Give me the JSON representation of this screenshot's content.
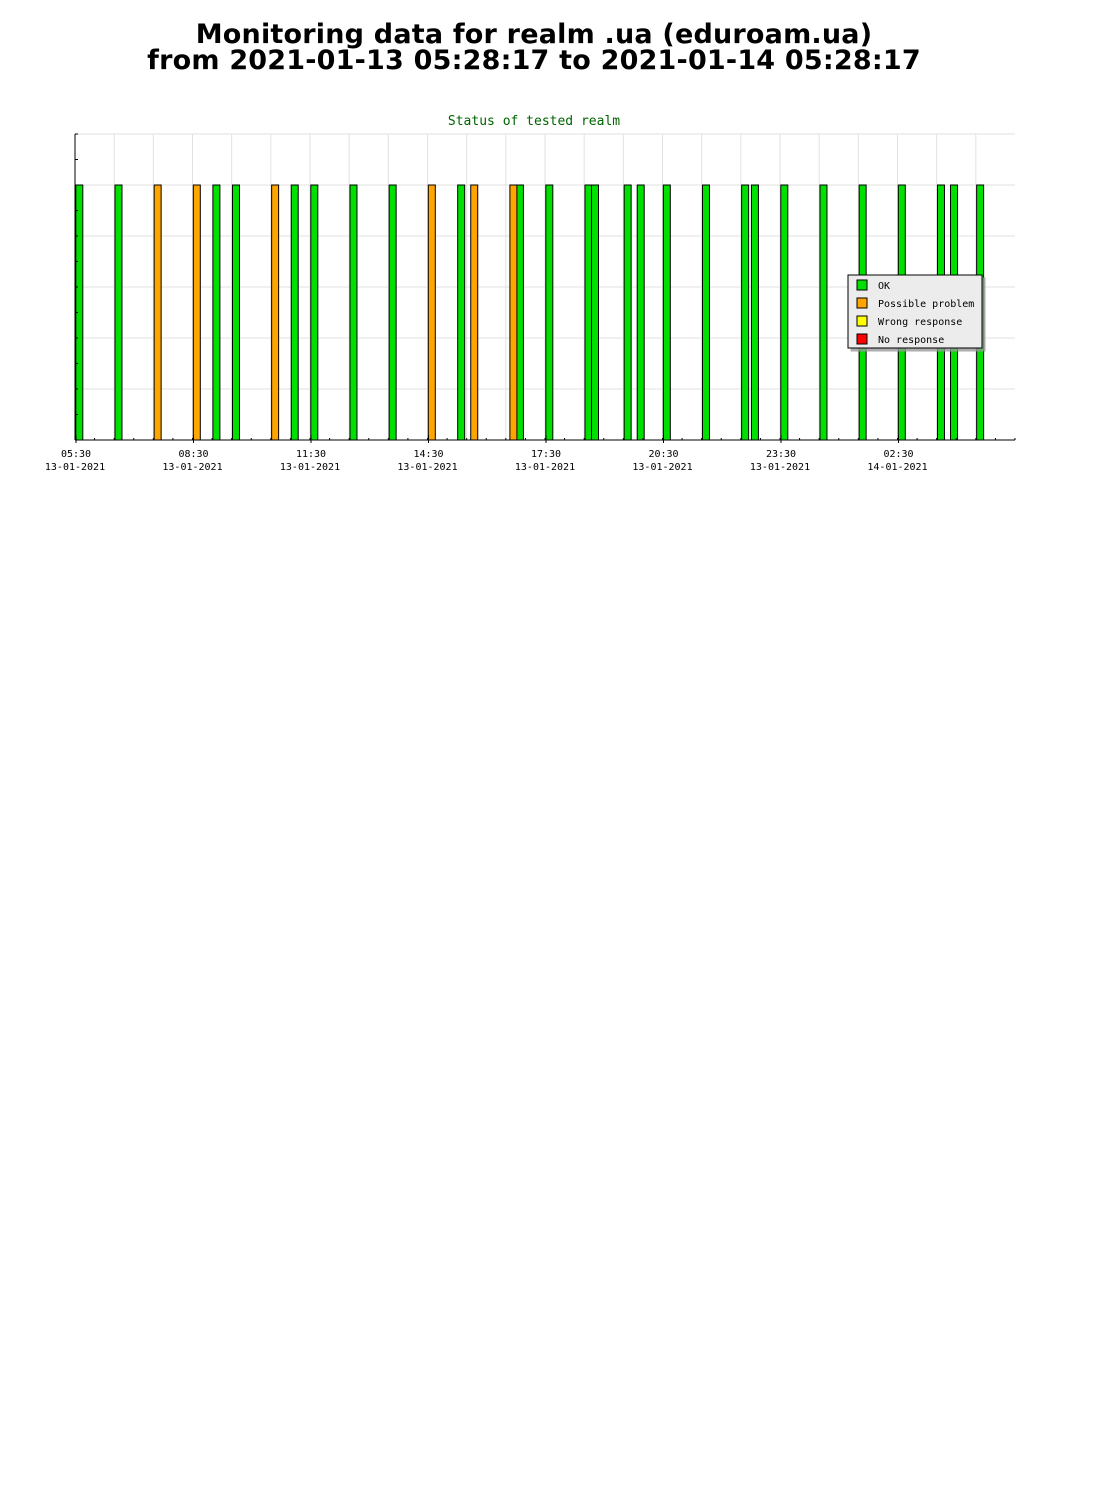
{
  "page": {
    "title_line1": "Monitoring data for realm .ua  (eduroam.ua)",
    "title_line2": "from 2021-01-13 05:28:17 to 2021-01-14 05:28:17"
  },
  "chart_data": {
    "type": "bar",
    "title": "Status of tested realm",
    "xlabel": "",
    "ylabel": "",
    "title_color": "#006400",
    "grid": true,
    "legend_position": "right",
    "x_ticks": [
      {
        "time": "05:30",
        "date": "13-01-2021"
      },
      {
        "time": "08:30",
        "date": "13-01-2021"
      },
      {
        "time": "11:30",
        "date": "13-01-2021"
      },
      {
        "time": "14:30",
        "date": "13-01-2021"
      },
      {
        "time": "17:30",
        "date": "13-01-2021"
      },
      {
        "time": "20:30",
        "date": "13-01-2021"
      },
      {
        "time": "23:30",
        "date": "13-01-2021"
      },
      {
        "time": "02:30",
        "date": "14-01-2021"
      }
    ],
    "x_range": [
      "2021-01-13 05:28",
      "2021-01-14 05:28"
    ],
    "legend": [
      {
        "label": "OK",
        "color": "#00e000"
      },
      {
        "label": "Possible problem",
        "color": "#ffa500"
      },
      {
        "label": "Wrong response",
        "color": "#ffff00"
      },
      {
        "label": "No response",
        "color": "#ff0000"
      }
    ],
    "series": [
      {
        "name": "OK",
        "times": [
          "2021-01-13 05:30",
          "2021-01-13 06:30",
          "2021-01-13 09:00",
          "2021-01-13 09:30",
          "2021-01-13 11:00",
          "2021-01-13 11:30",
          "2021-01-13 12:30",
          "2021-01-13 13:30",
          "2021-01-13 15:15",
          "2021-01-13 16:45",
          "2021-01-13 17:30",
          "2021-01-13 18:30",
          "2021-01-13 18:40",
          "2021-01-13 19:30",
          "2021-01-13 19:50",
          "2021-01-13 20:30",
          "2021-01-13 21:30",
          "2021-01-13 22:30",
          "2021-01-13 22:45",
          "2021-01-13 23:30",
          "2021-01-14 00:30",
          "2021-01-14 01:30",
          "2021-01-14 02:30",
          "2021-01-14 03:30",
          "2021-01-14 03:50",
          "2021-01-14 04:30"
        ]
      },
      {
        "name": "Possible problem",
        "times": [
          "2021-01-13 07:30",
          "2021-01-13 08:30",
          "2021-01-13 10:30",
          "2021-01-13 14:30",
          "2021-01-13 15:35",
          "2021-01-13 16:35"
        ]
      },
      {
        "name": "Wrong response",
        "times": []
      },
      {
        "name": "No response",
        "times": []
      }
    ]
  }
}
